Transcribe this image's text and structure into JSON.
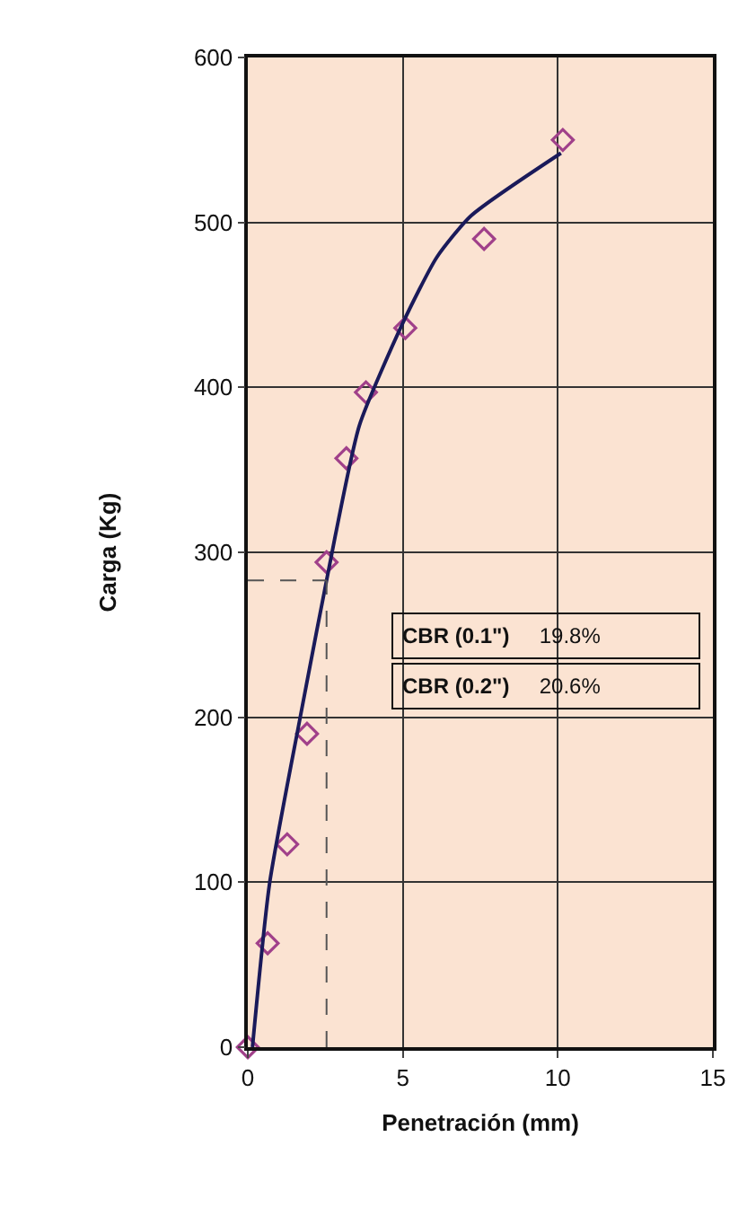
{
  "chart_data": {
    "type": "scatter",
    "xlabel": "Penetración (mm)",
    "ylabel": "Carga (Kg)",
    "xlim": [
      0,
      15
    ],
    "xticks": [
      0,
      5,
      10,
      15
    ],
    "ylim": [
      0,
      600
    ],
    "yticks": [
      0,
      100,
      200,
      300,
      400,
      500,
      600
    ],
    "grid": true,
    "legend": false,
    "series": [
      {
        "marker": "diamond",
        "color": "#a0408a",
        "x": [
          0,
          0.64,
          1.27,
          1.91,
          2.54,
          3.18,
          3.81,
          5.08,
          7.62,
          10.16
        ],
        "values": [
          0,
          63,
          123,
          190,
          294,
          357,
          397,
          436,
          490,
          550
        ]
      },
      {
        "type": "line",
        "marker": "none",
        "line_style": "solid",
        "color": "#1a1a5a",
        "x": [
          0.15,
          0.7,
          1.68,
          2.8,
          3.6,
          5.0,
          6.1,
          7.2,
          10.1
        ],
        "values": [
          0,
          99,
          199,
          308,
          377,
          439,
          479,
          504,
          542
        ]
      }
    ],
    "ref_lines": [
      {
        "axis": "x",
        "value": 2.54,
        "color": "#555555",
        "line_style": "dashed"
      },
      {
        "axis": "y",
        "value": 283,
        "color": "#555555",
        "line_style": "dashed"
      }
    ],
    "annotations": [
      "CBR (0.1\")     19.8%",
      "CBR (0.2\")     20.6%"
    ]
  }
}
